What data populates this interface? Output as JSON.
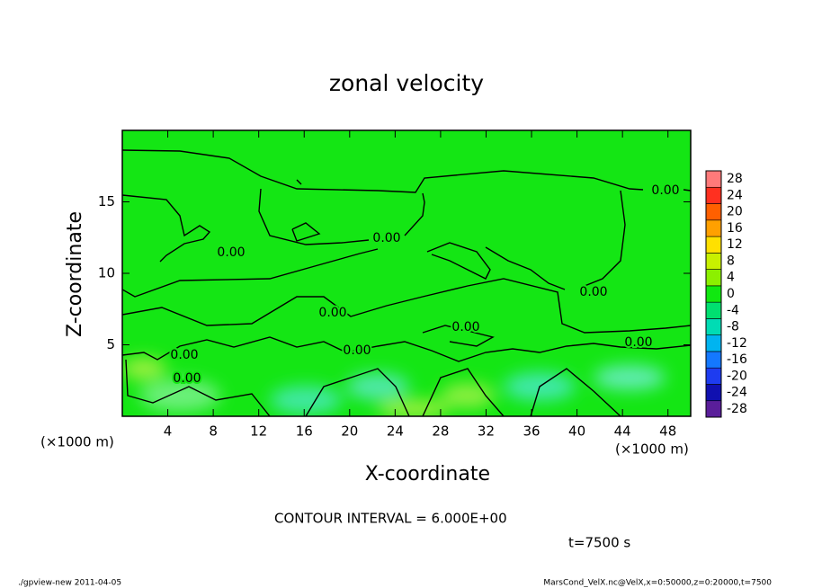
{
  "chart_data": {
    "type": "contour",
    "title": "zonal velocity",
    "x_label": "X-coordinate",
    "y_label": "Z-coordinate",
    "x_units": "(×1000 m)",
    "y_units": "(×1000 m)",
    "xlim": [
      0,
      50
    ],
    "xticks": [
      4,
      8,
      12,
      16,
      20,
      24,
      28,
      32,
      36,
      40,
      44,
      48
    ],
    "ylim": [
      0,
      20
    ],
    "yticks": [
      5,
      10,
      15
    ],
    "contour_levels": [
      {
        "value": 0,
        "label": "0.00"
      }
    ],
    "contour_interval": "CONTOUR INTERVAL = 6.000E+00",
    "time_label": "t=7500 s",
    "colorbar": {
      "ticks": [
        -28,
        -24,
        -20,
        -16,
        -12,
        -8,
        -4,
        0,
        4,
        8,
        12,
        16,
        20,
        24,
        28
      ],
      "colors": [
        "#5a1e9a",
        "#1010b0",
        "#1e3cf0",
        "#1478ff",
        "#00b4f0",
        "#00dcb4",
        "#00e070",
        "#10e810",
        "#8cf000",
        "#c8f000",
        "#ffe000",
        "#ffa000",
        "#ff6000",
        "#ff3020",
        "#ff7a7a"
      ]
    },
    "footer_left": "./gpview-new  2011-04-05",
    "footer_right": "MarsCond_VelX.nc@VelX,x=0:50000,z=0:20000,t=7500"
  }
}
